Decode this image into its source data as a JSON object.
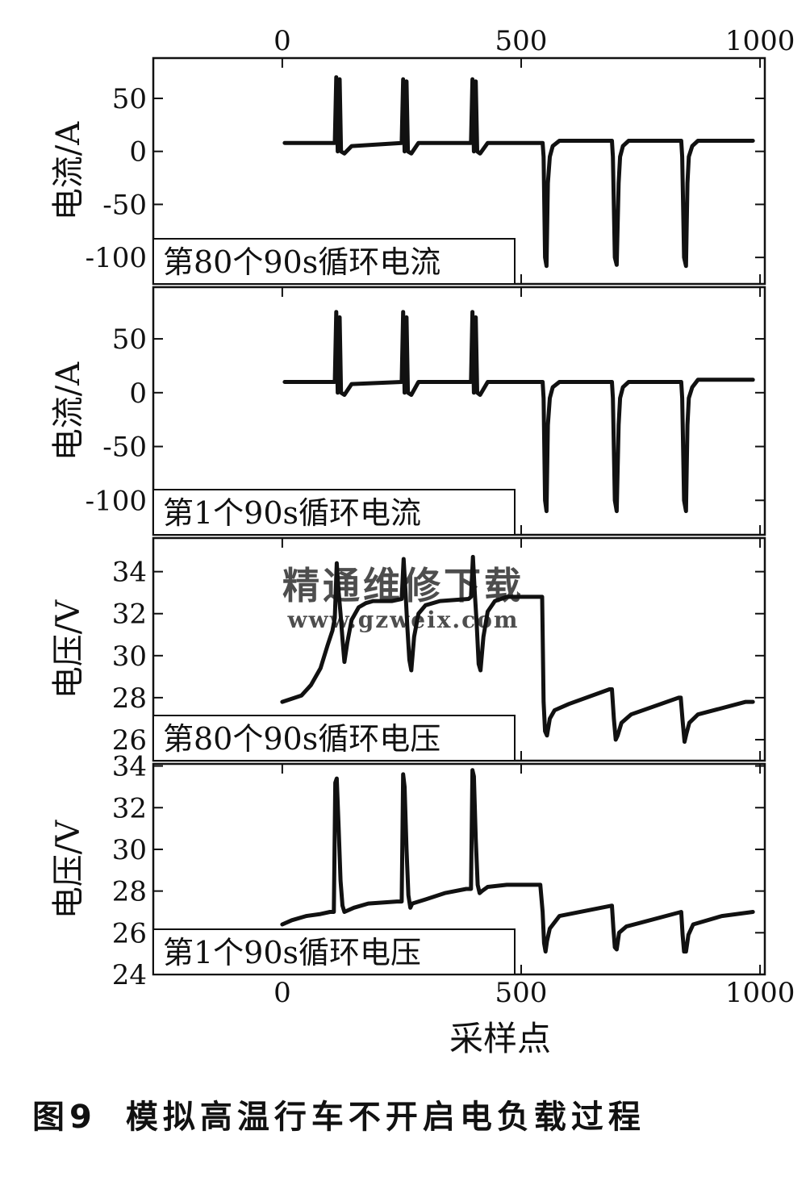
{
  "caption": {
    "figure_number": "图9",
    "title": "模拟高温行车不开启电负载过程"
  },
  "watermark": {
    "line1": "精通维修下载",
    "line2": "www.gzweix.com",
    "color": "#f2b48a"
  },
  "x_axis": {
    "label": "采样点",
    "range": [
      -270,
      1010
    ],
    "ticks": [
      0,
      500,
      1000
    ],
    "tick_labels": [
      "0",
      "500",
      "1000"
    ]
  },
  "chart_data": [
    {
      "type": "line",
      "ylabel": "电流/A",
      "annotation": "第80个90s循环电流",
      "ylim": [
        -125,
        88
      ],
      "yticks": [
        50,
        0,
        -50,
        -100
      ],
      "ytick_labels": [
        "50",
        "0",
        "-50",
        "-100"
      ],
      "series": [
        {
          "x": [
            5,
            110,
            113,
            116,
            120,
            123,
            130,
            145,
            250,
            253,
            256,
            260,
            263,
            270,
            285,
            395,
            398,
            401,
            405,
            408,
            414,
            430,
            545,
            547,
            550,
            553,
            556,
            560,
            566,
            580,
            690,
            692,
            696,
            700,
            704,
            707,
            713,
            725,
            835,
            837,
            841,
            845,
            848,
            851,
            858,
            870,
            985
          ],
          "y": [
            8,
            8,
            70,
            0,
            68,
            0,
            -2,
            5,
            8,
            68,
            0,
            66,
            0,
            -2,
            8,
            8,
            68,
            0,
            66,
            0,
            -2,
            8,
            8,
            -5,
            -100,
            -108,
            -30,
            -5,
            5,
            10,
            10,
            -5,
            -100,
            -107,
            -30,
            -5,
            5,
            10,
            10,
            -5,
            -100,
            -108,
            -30,
            -5,
            5,
            10,
            10
          ]
        }
      ]
    },
    {
      "type": "line",
      "ylabel": "电流/A",
      "annotation": "第1个90s循环电流",
      "ylim": [
        -132,
        98
      ],
      "yticks": [
        50,
        0,
        -50,
        -100
      ],
      "ytick_labels": [
        "50",
        "0",
        "-50",
        "-100"
      ],
      "series": [
        {
          "x": [
            5,
            110,
            113,
            116,
            120,
            123,
            130,
            145,
            250,
            253,
            256,
            260,
            263,
            270,
            285,
            395,
            398,
            401,
            405,
            408,
            414,
            430,
            545,
            547,
            550,
            553,
            556,
            560,
            566,
            580,
            690,
            692,
            696,
            700,
            704,
            707,
            713,
            725,
            835,
            837,
            841,
            845,
            848,
            851,
            858,
            870,
            985
          ],
          "y": [
            10,
            10,
            75,
            0,
            70,
            0,
            -2,
            8,
            10,
            75,
            0,
            70,
            0,
            -2,
            10,
            10,
            75,
            0,
            70,
            0,
            -2,
            10,
            10,
            -5,
            -100,
            -110,
            -30,
            -5,
            5,
            10,
            10,
            -5,
            -100,
            -110,
            -30,
            -5,
            5,
            10,
            10,
            -5,
            -100,
            -110,
            -30,
            -5,
            5,
            12,
            12
          ]
        }
      ]
    },
    {
      "type": "line",
      "ylabel": "电压/V",
      "annotation": "第80个90s循环电压",
      "ylim": [
        25.0,
        35.6
      ],
      "yticks": [
        34,
        32,
        30,
        28,
        26
      ],
      "ytick_labels": [
        "34",
        "32",
        "30",
        "28",
        "26"
      ],
      "series": [
        {
          "x": [
            0,
            40,
            60,
            80,
            95,
            105,
            110,
            114,
            118,
            122,
            126,
            130,
            136,
            145,
            160,
            175,
            190,
            230,
            250,
            254,
            258,
            262,
            266,
            270,
            276,
            285,
            300,
            330,
            390,
            395,
            399,
            403,
            407,
            411,
            415,
            421,
            430,
            445,
            470,
            540,
            544,
            547,
            550,
            554,
            560,
            570,
            600,
            685,
            690,
            694,
            698,
            702,
            710,
            730,
            830,
            834,
            838,
            842,
            846,
            852,
            870,
            970,
            985
          ],
          "y": [
            27.8,
            28.1,
            28.6,
            29.4,
            30.5,
            31.2,
            31.8,
            34.4,
            33.0,
            32.0,
            30.8,
            29.7,
            30.6,
            31.7,
            32.3,
            32.5,
            32.6,
            32.6,
            32.7,
            34.6,
            33.0,
            31.3,
            29.8,
            29.3,
            30.9,
            32.0,
            32.4,
            32.6,
            32.7,
            32.8,
            34.7,
            33.0,
            31.5,
            29.6,
            29.3,
            30.9,
            32.1,
            32.6,
            32.8,
            32.8,
            32.8,
            27.8,
            26.4,
            26.2,
            27.0,
            27.4,
            27.7,
            28.4,
            28.4,
            27.0,
            26.0,
            26.2,
            26.8,
            27.2,
            28.0,
            28.0,
            26.9,
            25.9,
            26.3,
            26.8,
            27.2,
            27.8,
            27.8
          ]
        }
      ]
    },
    {
      "type": "line",
      "ylabel": "电压/V",
      "annotation": "第1个90s循环电压",
      "ylim": [
        24.0,
        34.1
      ],
      "yticks": [
        34,
        32,
        30,
        28,
        26,
        24
      ],
      "ytick_labels": [
        "34",
        "32",
        "30",
        "28",
        "26",
        "24"
      ],
      "series": [
        {
          "x": [
            0,
            20,
            50,
            80,
            100,
            108,
            111,
            114,
            118,
            122,
            126,
            130,
            150,
            180,
            240,
            250,
            253,
            256,
            260,
            264,
            268,
            272,
            300,
            340,
            385,
            395,
            398,
            401,
            405,
            409,
            413,
            418,
            430,
            470,
            540,
            545,
            548,
            551,
            554,
            560,
            580,
            690,
            693,
            696,
            700,
            705,
            720,
            835,
            838,
            841,
            845,
            850,
            860,
            920,
            985
          ],
          "y": [
            26.4,
            26.6,
            26.8,
            26.9,
            27.0,
            27.0,
            33.2,
            33.4,
            31.0,
            28.5,
            27.3,
            27.0,
            27.2,
            27.4,
            27.5,
            27.5,
            33.6,
            33.0,
            30.0,
            27.8,
            27.2,
            27.4,
            27.6,
            27.9,
            28.1,
            28.1,
            33.8,
            33.5,
            30.5,
            28.3,
            27.9,
            28.0,
            28.2,
            28.3,
            28.3,
            27.0,
            25.5,
            25.1,
            25.6,
            26.2,
            26.8,
            27.3,
            26.2,
            25.3,
            25.2,
            26.0,
            26.3,
            27.0,
            25.9,
            25.1,
            25.1,
            25.9,
            26.4,
            26.8,
            27.0
          ]
        }
      ]
    }
  ]
}
